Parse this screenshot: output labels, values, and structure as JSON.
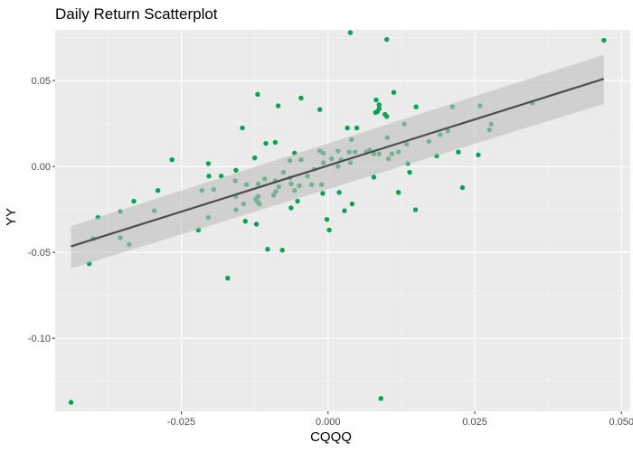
{
  "chart_data": {
    "type": "scatter",
    "title": "Daily Return Scatterplot",
    "xlabel": "CQQQ",
    "ylabel": "YY",
    "xlim": [
      -0.0465,
      0.0515
    ],
    "ylim": [
      -0.1425,
      0.0795
    ],
    "x_ticks": [
      -0.025,
      0.0,
      0.025,
      0.05
    ],
    "x_tick_labels": [
      "-0.025",
      "0.000",
      "0.025",
      "0.050"
    ],
    "y_ticks": [
      -0.1,
      -0.05,
      0.0,
      0.05
    ],
    "y_tick_labels": [
      "-0.10",
      "-0.05",
      "0.00",
      "0.05"
    ],
    "grid": true,
    "legend": null,
    "point_color": "#00A651",
    "panel_background": "#EBEBEB",
    "regression_line": {
      "method": "lm",
      "color": "#4D4D4D",
      "x": [
        -0.0438,
        0.047
      ],
      "y": [
        -0.0465,
        0.051
      ],
      "ci_upper": [
        -0.0347,
        0.065
      ],
      "ci_lower": [
        -0.0594,
        0.0364
      ],
      "ci_fill": "#BEBEBE"
    },
    "points": [
      [
        -0.0438,
        -0.1373
      ],
      [
        -0.0407,
        -0.0566
      ],
      [
        -0.04,
        -0.042
      ],
      [
        -0.0392,
        -0.0297
      ],
      [
        -0.0354,
        -0.0263
      ],
      [
        -0.0354,
        -0.0415
      ],
      [
        -0.0339,
        -0.0454
      ],
      [
        -0.0331,
        -0.0202
      ],
      [
        -0.0296,
        -0.0258
      ],
      [
        -0.029,
        -0.014
      ],
      [
        -0.0266,
        0.0039
      ],
      [
        -0.0221,
        -0.037
      ],
      [
        -0.0215,
        -0.014
      ],
      [
        -0.0204,
        0.0017
      ],
      [
        -0.0204,
        -0.0297
      ],
      [
        -0.0203,
        -0.0056
      ],
      [
        -0.0195,
        -0.0134
      ],
      [
        -0.0182,
        -0.0056
      ],
      [
        -0.0171,
        -0.065
      ],
      [
        -0.0157,
        -0.0022
      ],
      [
        -0.0158,
        -0.0084
      ],
      [
        -0.0146,
        0.0224
      ],
      [
        -0.0157,
        -0.0174
      ],
      [
        -0.0144,
        -0.0218
      ],
      [
        -0.0157,
        -0.0252
      ],
      [
        -0.0141,
        -0.0319
      ],
      [
        -0.0139,
        -0.0106
      ],
      [
        -0.0122,
        -0.0336
      ],
      [
        -0.012,
        0.042
      ],
      [
        -0.0125,
        0.005
      ],
      [
        -0.0123,
        -0.019
      ],
      [
        -0.0119,
        -0.0174
      ],
      [
        -0.012,
        -0.0207
      ],
      [
        -0.0117,
        -0.0218
      ],
      [
        -0.0119,
        -0.0101
      ],
      [
        -0.0108,
        -0.0073
      ],
      [
        -0.0106,
        0.0134
      ],
      [
        -0.0103,
        -0.0482
      ],
      [
        -0.0093,
        -0.0168
      ],
      [
        -0.009,
        0.014
      ],
      [
        -0.009,
        -0.0084
      ],
      [
        -0.0089,
        -0.0146
      ],
      [
        -0.0085,
        0.0353
      ],
      [
        -0.0084,
        -0.0118
      ],
      [
        -0.0078,
        -0.0487
      ],
      [
        -0.0076,
        -0.0034
      ],
      [
        -0.0065,
        0.0034
      ],
      [
        -0.0065,
        -0.0067
      ],
      [
        -0.0063,
        -0.0101
      ],
      [
        -0.0063,
        -0.0241
      ],
      [
        -0.0057,
        0.0078
      ],
      [
        -0.0057,
        -0.014
      ],
      [
        -0.0052,
        -0.0202
      ],
      [
        -0.0049,
        -0.0112
      ],
      [
        -0.0046,
        0.0398
      ],
      [
        -0.0046,
        0.0039
      ],
      [
        -0.0035,
        -0.0056
      ],
      [
        -0.0028,
        -0.0106
      ],
      [
        -0.0024,
        -0.0017
      ],
      [
        -0.0014,
        0.0331
      ],
      [
        -0.0014,
        0.009
      ],
      [
        -0.0011,
        -0.0106
      ],
      [
        -0.0009,
        -0.0157
      ],
      [
        -0.0008,
        0.0078
      ],
      [
        -0.0008,
        0.0022
      ],
      [
        -0.0002,
        -0.0308
      ],
      [
        0.0002,
        -0.037
      ],
      [
        0.0006,
        0.0045
      ],
      [
        0.0017,
        0.009
      ],
      [
        0.0017,
        0.0
      ],
      [
        0.0019,
        -0.0151
      ],
      [
        0.0022,
        0.0039
      ],
      [
        0.0028,
        -0.0258
      ],
      [
        0.0033,
        0.0224
      ],
      [
        0.0036,
        0.0084
      ],
      [
        0.0038,
        0.0779
      ],
      [
        0.0038,
        0.0022
      ],
      [
        0.004,
        0.0157
      ],
      [
        0.0041,
        -0.0218
      ],
      [
        0.0046,
        0.0084
      ],
      [
        0.0049,
        0.0224
      ],
      [
        0.0065,
        0.0084
      ],
      [
        0.0071,
        0.0095
      ],
      [
        0.0078,
        0.0073
      ],
      [
        0.0078,
        -0.0062
      ],
      [
        0.0081,
        0.0314
      ],
      [
        0.0082,
        0.0387
      ],
      [
        0.0084,
        0.0319
      ],
      [
        0.0087,
        0.0359
      ],
      [
        0.0087,
        0.0336
      ],
      [
        0.0087,
        0.0073
      ],
      [
        0.009,
        -0.135
      ],
      [
        0.0097,
        0.0303
      ],
      [
        0.01,
        0.0739
      ],
      [
        0.01,
        0.0291
      ],
      [
        0.0101,
        0.0168
      ],
      [
        0.0103,
        0.0045
      ],
      [
        0.0109,
        0.0073
      ],
      [
        0.0112,
        0.0431
      ],
      [
        0.012,
        0.0084
      ],
      [
        0.012,
        -0.0151
      ],
      [
        0.013,
        0.0246
      ],
      [
        0.0134,
        0.0129
      ],
      [
        0.0136,
        0.0017
      ],
      [
        0.0139,
        -0.0034
      ],
      [
        0.0149,
        -0.0252
      ],
      [
        0.015,
        0.0347
      ],
      [
        0.0172,
        0.0146
      ],
      [
        0.0185,
        0.0062
      ],
      [
        0.0191,
        0.0185
      ],
      [
        0.0204,
        0.0207
      ],
      [
        0.0212,
        0.0347
      ],
      [
        0.0222,
        0.0084
      ],
      [
        0.0229,
        -0.0123
      ],
      [
        0.0256,
        0.0067
      ],
      [
        0.0259,
        0.0353
      ],
      [
        0.0275,
        0.0213
      ],
      [
        0.0278,
        0.0246
      ],
      [
        0.0348,
        0.037
      ],
      [
        0.047,
        0.0734
      ]
    ]
  }
}
